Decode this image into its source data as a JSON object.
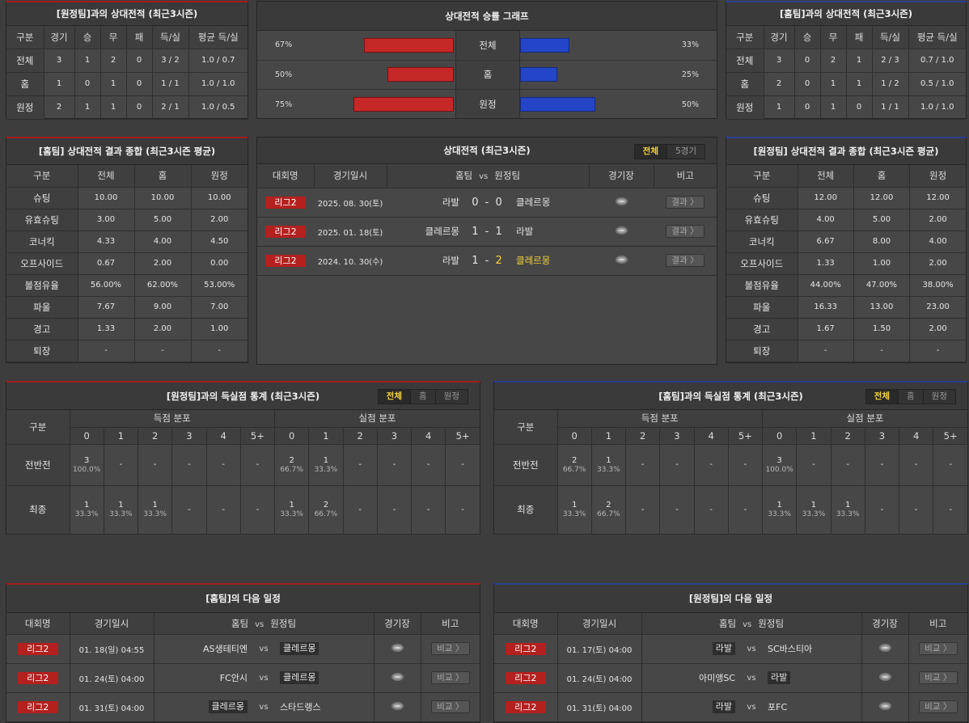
{
  "away_h2h": {
    "title": "[원정팀]과의 상대전적 (최근3시즌)",
    "headers": [
      "구분",
      "경기",
      "승",
      "무",
      "패",
      "득/실",
      "평균 득/실"
    ],
    "rows": [
      [
        "전체",
        "3",
        "1",
        "2",
        "0",
        "3 / 2",
        "1.0 / 0.7"
      ],
      [
        "홈",
        "1",
        "0",
        "1",
        "0",
        "1 / 1",
        "1.0 / 1.0"
      ],
      [
        "원정",
        "2",
        "1",
        "1",
        "0",
        "2 / 1",
        "1.0 / 0.5"
      ]
    ]
  },
  "graph": {
    "title": "상대전적 승률 그래프",
    "rows": [
      {
        "label": "전체",
        "left": "67%",
        "right": "33%",
        "lv": 67,
        "rv": 33
      },
      {
        "label": "홈",
        "left": "50%",
        "right": "25%",
        "lv": 50,
        "rv": 25
      },
      {
        "label": "원정",
        "left": "75%",
        "right": "50%",
        "lv": 75,
        "rv": 50
      }
    ],
    "colors": {
      "home": "#c62828",
      "away": "#2445c7"
    }
  },
  "home_h2h": {
    "title": "[홈팀]과의 상대전적 (최근3시즌)",
    "headers": [
      "구분",
      "경기",
      "승",
      "무",
      "패",
      "득/실",
      "평균 득/실"
    ],
    "rows": [
      [
        "전체",
        "3",
        "0",
        "2",
        "1",
        "2 / 3",
        "0.7 / 1.0"
      ],
      [
        "홈",
        "2",
        "0",
        "1",
        "1",
        "1 / 2",
        "0.5 / 1.0"
      ],
      [
        "원정",
        "1",
        "0",
        "1",
        "0",
        "1 / 1",
        "1.0 / 1.0"
      ]
    ]
  },
  "home_summary": {
    "title": "[홈팀] 상대전적 결과 종합 (최근3시즌 평균)",
    "headers": [
      "구분",
      "전체",
      "홈",
      "원정"
    ],
    "rows": [
      [
        "슈팅",
        "10.00",
        "10.00",
        "10.00"
      ],
      [
        "유효슈팅",
        "3.00",
        "5.00",
        "2.00"
      ],
      [
        "코너킥",
        "4.33",
        "4.00",
        "4.50"
      ],
      [
        "오프사이드",
        "0.67",
        "2.00",
        "0.00"
      ],
      [
        "볼점유율",
        "56.00%",
        "62.00%",
        "53.00%"
      ],
      [
        "파울",
        "7.67",
        "9.00",
        "7.00"
      ],
      [
        "경고",
        "1.33",
        "2.00",
        "1.00"
      ],
      [
        "퇴장",
        "-",
        "-",
        "-"
      ]
    ]
  },
  "h2h_matches": {
    "title": "상대전적 (최근3시즌)",
    "toggle": [
      "전체",
      "5경기"
    ],
    "headers": {
      "league": "대회명",
      "date": "경기일시",
      "home": "홈팀",
      "vs": "vs",
      "away": "원정팀",
      "stadium": "경기장",
      "note": "비고"
    },
    "rows": [
      {
        "league": "리그2",
        "date": "2025. 08. 30(토)",
        "home": "라발",
        "hs": "0",
        "as": "0",
        "away": "클레르몽",
        "btn": "결과 〉"
      },
      {
        "league": "리그2",
        "date": "2025. 01. 18(토)",
        "home": "클레르몽",
        "hs": "1",
        "as": "1",
        "away": "라발",
        "btn": "결과 〉"
      },
      {
        "league": "리그2",
        "date": "2024. 10. 30(수)",
        "home": "라발",
        "hs": "1",
        "as": "2",
        "away": "클레르몽",
        "btn": "결과 〉"
      }
    ]
  },
  "away_summary": {
    "title": "[원정팀] 상대전적 결과 종합 (최근3시즌 평균)",
    "headers": [
      "구분",
      "전체",
      "홈",
      "원정"
    ],
    "rows": [
      [
        "슈팅",
        "12.00",
        "12.00",
        "12.00"
      ],
      [
        "유효슈팅",
        "4.00",
        "5.00",
        "2.00"
      ],
      [
        "코너킥",
        "6.67",
        "8.00",
        "4.00"
      ],
      [
        "오프사이드",
        "1.33",
        "1.00",
        "2.00"
      ],
      [
        "볼점유율",
        "44.00%",
        "47.00%",
        "38.00%"
      ],
      [
        "파울",
        "16.33",
        "13.00",
        "23.00"
      ],
      [
        "경고",
        "1.67",
        "1.50",
        "2.00"
      ],
      [
        "퇴장",
        "-",
        "-",
        "-"
      ]
    ]
  },
  "goal_left": {
    "title": "[원정팀]과의 득실점 통계 (최근3시즌)",
    "toggle": [
      "전체",
      "홈",
      "원정"
    ],
    "col0": "구분",
    "g1": "득점 분포",
    "g2": "실점 분포",
    "cols": [
      "0",
      "1",
      "2",
      "3",
      "4",
      "5+",
      "0",
      "1",
      "2",
      "3",
      "4",
      "5+"
    ],
    "rows": [
      {
        "label": "전반전",
        "cells": [
          [
            "3",
            "100.0%"
          ],
          [
            "-",
            ""
          ],
          [
            "-",
            ""
          ],
          [
            "-",
            ""
          ],
          [
            "-",
            ""
          ],
          [
            "-",
            ""
          ],
          [
            "2",
            "66.7%"
          ],
          [
            "1",
            "33.3%"
          ],
          [
            "-",
            ""
          ],
          [
            "-",
            ""
          ],
          [
            "-",
            ""
          ],
          [
            "-",
            ""
          ]
        ]
      },
      {
        "label": "최종",
        "cells": [
          [
            "1",
            "33.3%"
          ],
          [
            "1",
            "33.3%"
          ],
          [
            "1",
            "33.3%"
          ],
          [
            "-",
            ""
          ],
          [
            "-",
            ""
          ],
          [
            "-",
            ""
          ],
          [
            "1",
            "33.3%"
          ],
          [
            "2",
            "66.7%"
          ],
          [
            "-",
            ""
          ],
          [
            "-",
            ""
          ],
          [
            "-",
            ""
          ],
          [
            "-",
            ""
          ]
        ]
      }
    ]
  },
  "goal_right": {
    "title": "[홈팀]과의 득실점 통계 (최근3시즌)",
    "toggle": [
      "전체",
      "홈",
      "원정"
    ],
    "col0": "구분",
    "g1": "득점 분포",
    "g2": "실점 분포",
    "cols": [
      "0",
      "1",
      "2",
      "3",
      "4",
      "5+",
      "0",
      "1",
      "2",
      "3",
      "4",
      "5+"
    ],
    "rows": [
      {
        "label": "전반전",
        "cells": [
          [
            "2",
            "66.7%"
          ],
          [
            "1",
            "33.3%"
          ],
          [
            "-",
            ""
          ],
          [
            "-",
            ""
          ],
          [
            "-",
            ""
          ],
          [
            "-",
            ""
          ],
          [
            "3",
            "100.0%"
          ],
          [
            "-",
            ""
          ],
          [
            "-",
            ""
          ],
          [
            "-",
            ""
          ],
          [
            "-",
            ""
          ],
          [
            "-",
            ""
          ]
        ]
      },
      {
        "label": "최종",
        "cells": [
          [
            "1",
            "33.3%"
          ],
          [
            "2",
            "66.7%"
          ],
          [
            "-",
            ""
          ],
          [
            "-",
            ""
          ],
          [
            "-",
            ""
          ],
          [
            "-",
            ""
          ],
          [
            "1",
            "33.3%"
          ],
          [
            "1",
            "33.3%"
          ],
          [
            "1",
            "33.3%"
          ],
          [
            "-",
            ""
          ],
          [
            "-",
            ""
          ],
          [
            "-",
            ""
          ]
        ]
      }
    ]
  },
  "next_home": {
    "title": "[홈팀]의 다음 일정",
    "headers": {
      "league": "대회명",
      "date": "경기일시",
      "home": "홈팀",
      "vs": "vs",
      "away": "원정팀",
      "stadium": "경기장",
      "note": "비고"
    },
    "rows": [
      {
        "league": "리그2",
        "date": "01. 18(일) 04:55",
        "home": "AS생테티엔",
        "away": "클레르몽",
        "boxed": "away",
        "btn": "비교 〉"
      },
      {
        "league": "리그2",
        "date": "01. 24(토) 04:00",
        "home": "FC안시",
        "away": "클레르몽",
        "boxed": "away",
        "btn": "비교 〉"
      },
      {
        "league": "리그2",
        "date": "01. 31(토) 04:00",
        "home": "클레르몽",
        "away": "스타드랭스",
        "boxed": "home",
        "btn": "비교 〉"
      }
    ]
  },
  "next_away": {
    "title": "[원정팀]의 다음 일정",
    "headers": {
      "league": "대회명",
      "date": "경기일시",
      "home": "홈팀",
      "vs": "vs",
      "away": "원정팀",
      "stadium": "경기장",
      "note": "비고"
    },
    "rows": [
      {
        "league": "리그2",
        "date": "01. 17(토) 04:00",
        "home": "라발",
        "away": "SC바스티아",
        "boxed": "home",
        "btn": "비교 〉"
      },
      {
        "league": "리그2",
        "date": "01. 24(토) 04:00",
        "home": "아미앵SC",
        "away": "라발",
        "boxed": "away",
        "btn": "비교 〉"
      },
      {
        "league": "리그2",
        "date": "01. 31(토) 04:00",
        "home": "라발",
        "away": "포FC",
        "boxed": "home",
        "btn": "비교 〉"
      }
    ]
  }
}
